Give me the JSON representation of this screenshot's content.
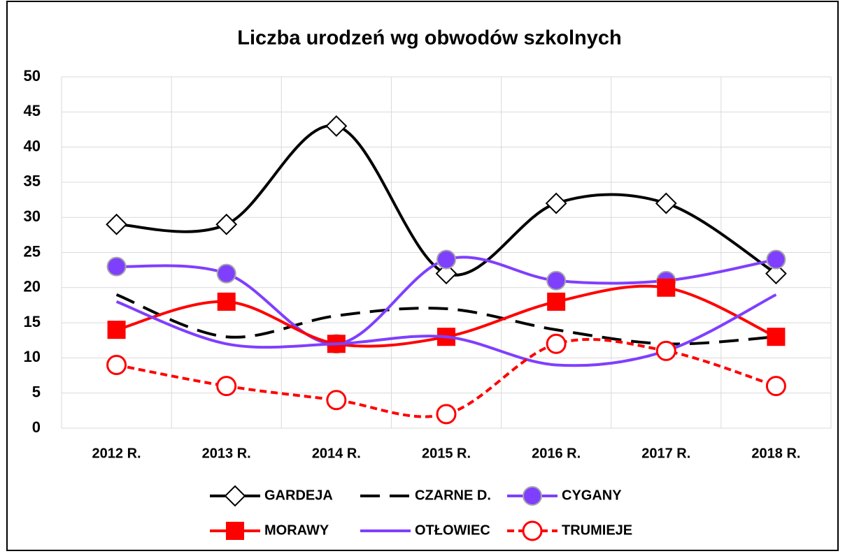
{
  "chart_data": {
    "type": "line",
    "title": "Liczba urodzeń wg obwodów szkolnych",
    "categories": [
      "2012 R.",
      "2013 R.",
      "2014 R.",
      "2015 R.",
      "2016 R.",
      "2017 R.",
      "2018 R."
    ],
    "series": [
      {
        "name": "GARDEJA",
        "color": "#000000",
        "dash": "solid",
        "marker": "diamond",
        "values": [
          29,
          29,
          43,
          22,
          32,
          32,
          22
        ]
      },
      {
        "name": "CZARNE D.",
        "color": "#000000",
        "dash": "dashed",
        "marker": "none",
        "values": [
          19,
          13,
          16,
          17,
          14,
          12,
          13
        ]
      },
      {
        "name": "CYGANY",
        "color": "#7f3fff",
        "dash": "solid",
        "marker": "circle",
        "values": [
          23,
          22,
          12,
          24,
          21,
          21,
          24
        ]
      },
      {
        "name": "MORAWY",
        "color": "#ff0000",
        "dash": "solid",
        "marker": "square",
        "values": [
          14,
          18,
          12,
          13,
          18,
          20,
          13
        ]
      },
      {
        "name": "OTŁOWIEC",
        "color": "#7f3fff",
        "dash": "solid",
        "marker": "none",
        "values": [
          18,
          12,
          12,
          13,
          9,
          11,
          19
        ]
      },
      {
        "name": "TRUMIEJE",
        "color": "#ff0000",
        "dash": "dotted",
        "marker": "open-circle",
        "values": [
          9,
          6,
          4,
          2,
          12,
          11,
          6
        ]
      }
    ],
    "ylim": [
      0,
      50
    ],
    "yticks": [
      0,
      5,
      10,
      15,
      20,
      25,
      30,
      35,
      40,
      45,
      50
    ],
    "grid": true,
    "smooth": true,
    "legend": "bottom"
  }
}
